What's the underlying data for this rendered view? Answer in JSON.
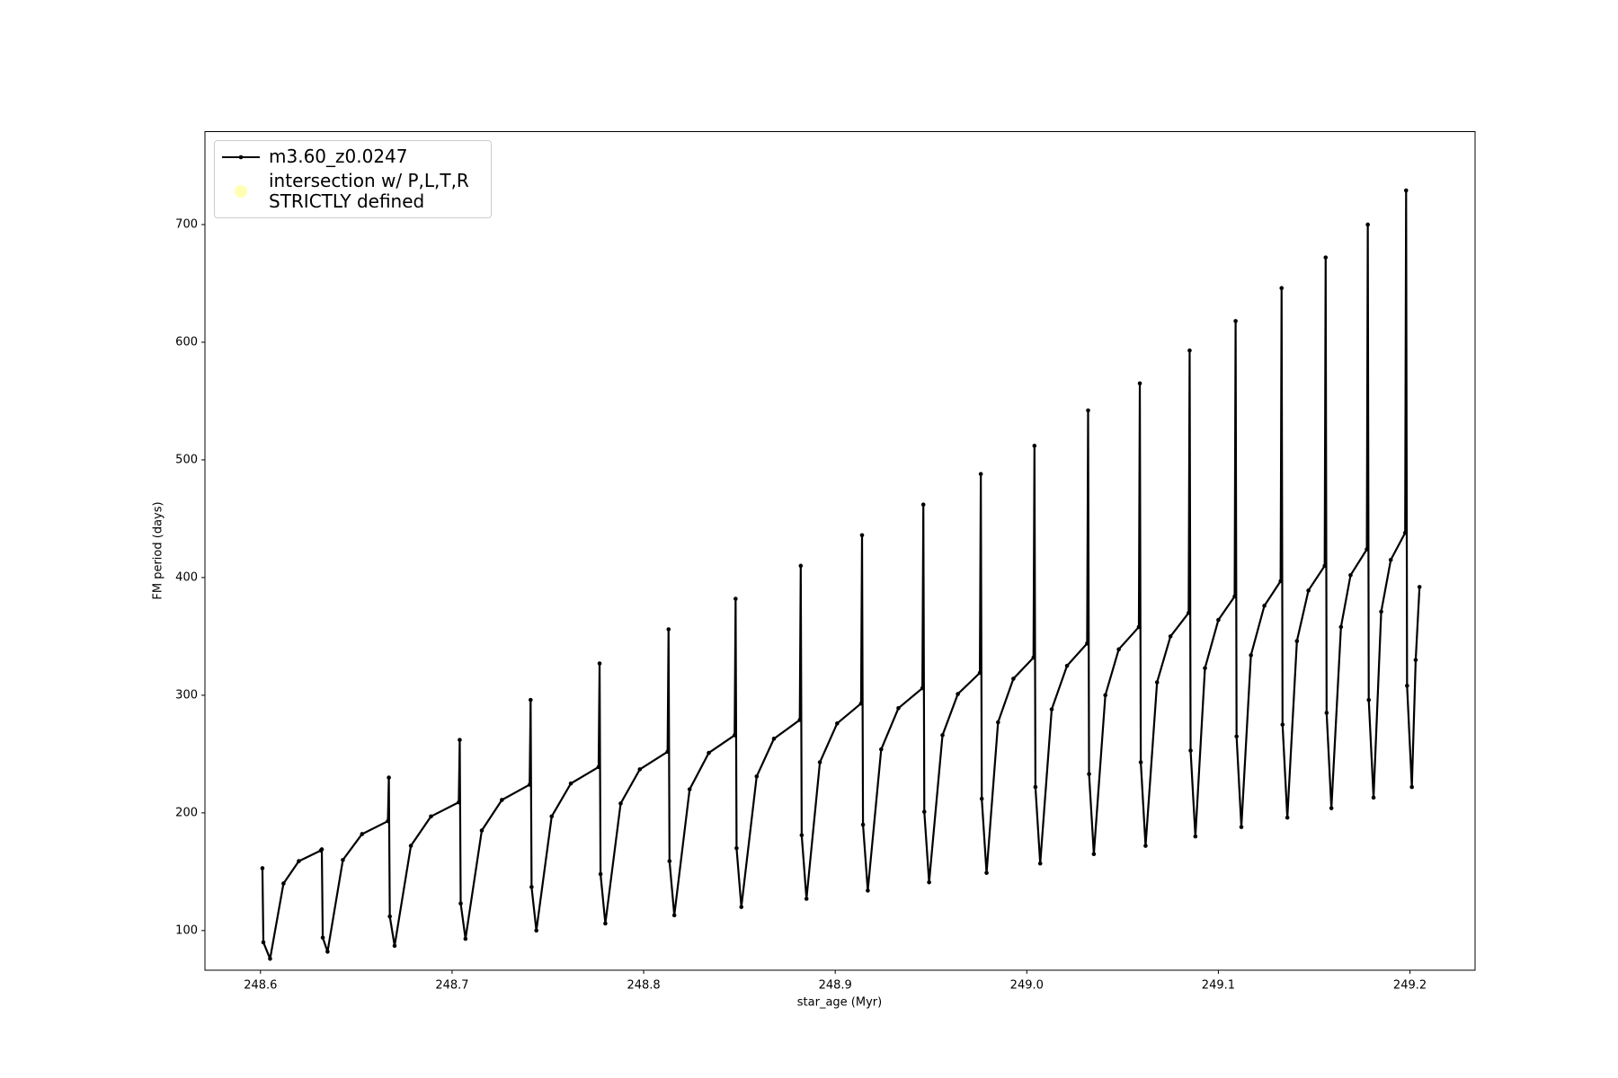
{
  "chart_data": {
    "type": "line",
    "xlabel": "star_age (Myr)",
    "ylabel": "FM period (days)",
    "xlim": [
      248.571,
      249.234
    ],
    "ylim": [
      66.3,
      779
    ],
    "xticks": [
      248.6,
      248.7,
      248.8,
      248.9,
      {
        "value": 249,
        "label": "249.0"
      },
      249.1,
      249.2
    ],
    "yticks": [
      100,
      200,
      300,
      400,
      500,
      600,
      700
    ],
    "legend": "upper left",
    "series": [
      {
        "name": "m3.60_z0.0247",
        "color": "#000000",
        "x": [
          248.601,
          248.6015,
          248.605,
          248.612,
          248.62,
          248.6315,
          248.632,
          248.6325,
          248.635,
          248.643,
          248.653,
          248.6665,
          248.667,
          248.6675,
          248.67,
          248.6785,
          248.689,
          248.7035,
          248.704,
          248.7045,
          248.707,
          248.7155,
          248.726,
          248.7405,
          248.741,
          248.7415,
          248.744,
          248.752,
          248.762,
          248.7765,
          248.777,
          248.7775,
          248.78,
          248.788,
          248.798,
          248.8125,
          248.813,
          248.8135,
          248.816,
          248.824,
          248.834,
          248.8475,
          248.848,
          248.8485,
          248.851,
          248.859,
          248.868,
          248.8815,
          248.882,
          248.8825,
          248.885,
          248.892,
          248.901,
          248.9135,
          248.914,
          248.9145,
          248.917,
          248.924,
          248.933,
          248.9455,
          248.946,
          248.9465,
          248.949,
          248.956,
          248.964,
          248.9755,
          248.976,
          248.9765,
          248.979,
          248.985,
          248.993,
          249.0035,
          249.004,
          249.0045,
          249.007,
          249.013,
          249.021,
          249.0315,
          249.032,
          249.0325,
          249.035,
          249.041,
          249.048,
          249.0585,
          249.059,
          249.0595,
          249.062,
          249.068,
          249.075,
          249.0845,
          249.085,
          249.0855,
          249.088,
          249.093,
          249.1,
          249.1085,
          249.109,
          249.1095,
          249.112,
          249.117,
          249.124,
          249.1325,
          249.133,
          249.1335,
          249.136,
          249.141,
          249.147,
          249.1555,
          249.156,
          249.1565,
          249.159,
          249.164,
          249.169,
          249.1775,
          249.178,
          249.1785,
          249.181,
          249.185,
          249.19,
          249.1975,
          249.198,
          249.1985,
          249.201,
          249.203,
          249.205
        ],
        "values": [
          153,
          90,
          76,
          140,
          159,
          168,
          169,
          94,
          82,
          160,
          182,
          193,
          230,
          112,
          87,
          172,
          197,
          209,
          262,
          123,
          93,
          185,
          211,
          224,
          296,
          137,
          100,
          197,
          225,
          239,
          327,
          148,
          106,
          208,
          237,
          252,
          356,
          159,
          113,
          220,
          251,
          266,
          382,
          170,
          120,
          231,
          263,
          279,
          410,
          181,
          127,
          243,
          276,
          293,
          436,
          190,
          134,
          254,
          289,
          306,
          462,
          201,
          141,
          266,
          301,
          319,
          488,
          212,
          149,
          277,
          314,
          332,
          512,
          222,
          157,
          288,
          325,
          344,
          542,
          233,
          165,
          300,
          339,
          358,
          565,
          243,
          172,
          311,
          350,
          370,
          593,
          253,
          180,
          323,
          364,
          384,
          618,
          265,
          188,
          334,
          376,
          397,
          646,
          275,
          196,
          346,
          389,
          410,
          672,
          285,
          204,
          358,
          402,
          424,
          700,
          296,
          213,
          371,
          415,
          438,
          729,
          308,
          222,
          330,
          392
        ]
      },
      {
        "name": "intersection w/ P,L,T,R\nSTRICTLY defined",
        "color": "#ffffb3"
      }
    ]
  }
}
